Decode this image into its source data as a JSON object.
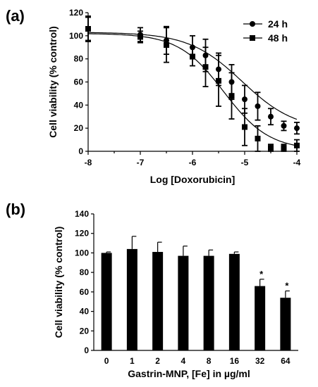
{
  "chart_data": [
    {
      "panel": "(a)",
      "type": "scatter",
      "xlabel": "Log [Doxorubicin]",
      "ylabel": "Cell viability (% control)",
      "xlim": [
        -8,
        -4
      ],
      "ylim": [
        0,
        120
      ],
      "xticks": [
        "-8",
        "-7",
        "-6",
        "-5",
        "-4"
      ],
      "yticks": [
        "0",
        "20",
        "40",
        "60",
        "80",
        "100",
        "120"
      ],
      "legend_position": "top-right",
      "grid": false,
      "series": [
        {
          "name": "24 h",
          "marker": "circle",
          "x": [
            -8,
            -7,
            -6.5,
            -6,
            -5.75,
            -5.5,
            -5.25,
            -5,
            -4.75,
            -4.5,
            -4.25,
            -4
          ],
          "y": [
            106,
            101,
            96,
            90,
            83,
            71,
            60,
            45,
            39,
            30,
            22,
            20
          ],
          "err": [
            10,
            6,
            12,
            10,
            14,
            14,
            15,
            12,
            12,
            7,
            4,
            5
          ],
          "fit": {
            "top": 103,
            "bottom": 18,
            "logec50": -5.05,
            "hill": 0.85
          }
        },
        {
          "name": "48 h",
          "marker": "square",
          "x": [
            -8,
            -7,
            -6.5,
            -6,
            -5.75,
            -5.5,
            -5.25,
            -5,
            -4.75,
            -4.5,
            -4.25,
            -4
          ],
          "y": [
            106,
            99,
            92,
            82,
            73,
            61,
            48,
            21,
            11,
            3,
            3,
            5
          ],
          "err": [
            11,
            5,
            15,
            8,
            17,
            22,
            20,
            16,
            11,
            3,
            3,
            5
          ],
          "fit": {
            "top": 102,
            "bottom": 1,
            "logec50": -5.4,
            "hill": 1.0
          }
        }
      ]
    },
    {
      "panel": "(b)",
      "type": "bar",
      "xlabel": "Gastrin-MNP, [Fe] in µg/ml",
      "ylabel": "Cell viability (% control)",
      "ylim": [
        0,
        140
      ],
      "yticks": [
        "0",
        "20",
        "40",
        "60",
        "80",
        "100",
        "120",
        "140"
      ],
      "categories": [
        "0",
        "1",
        "2",
        "4",
        "8",
        "16",
        "32",
        "64"
      ],
      "values": [
        100,
        104,
        101,
        97,
        97,
        99,
        66,
        54
      ],
      "errors": [
        1,
        13,
        10,
        10,
        6,
        2,
        7,
        7
      ],
      "significance": [
        "",
        "",
        "",
        "",
        "",
        "",
        "*",
        "*"
      ]
    }
  ]
}
